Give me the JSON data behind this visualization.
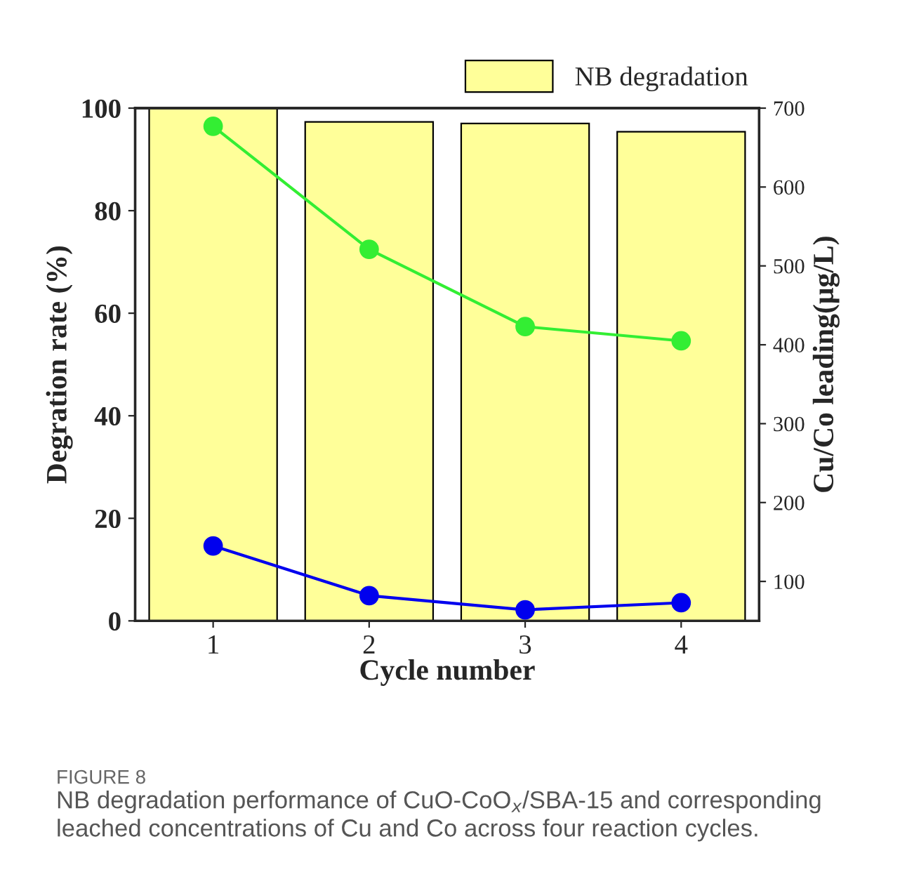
{
  "chart_data": {
    "type": "bar",
    "categories": [
      "1",
      "2",
      "3",
      "4"
    ],
    "xlabel": "Cycle number",
    "ylabel": "Degration rate (%)",
    "y2label": "Cu/Co leading(μg/L)",
    "series": [
      {
        "name": "NB degradation",
        "color": "#ffff99",
        "values": [
          100,
          97.3,
          97.0,
          95.4
        ]
      },
      {
        "type": "line",
        "axis": "y2",
        "color": "#33ee33",
        "values": [
          677,
          521,
          423,
          405
        ]
      },
      {
        "type": "line",
        "axis": "y2",
        "color": "#0000ee",
        "values": [
          145,
          82,
          64,
          73
        ]
      }
    ],
    "ylim": [
      0,
      100
    ],
    "yticks": [
      0,
      20,
      40,
      60,
      80,
      100
    ],
    "y2lim": [
      50,
      700
    ],
    "y2ticks": [
      100,
      200,
      300,
      400,
      500,
      600,
      700
    ],
    "marker": "circle",
    "legend": "top right",
    "grid": false,
    "annotations": [
      "FIGURE 8",
      "NB degradation performance of CuO-CoO$_{x}$/SBA-15 and corresponding leached concentrations of Cu and Co across four reaction cycles."
    ]
  }
}
